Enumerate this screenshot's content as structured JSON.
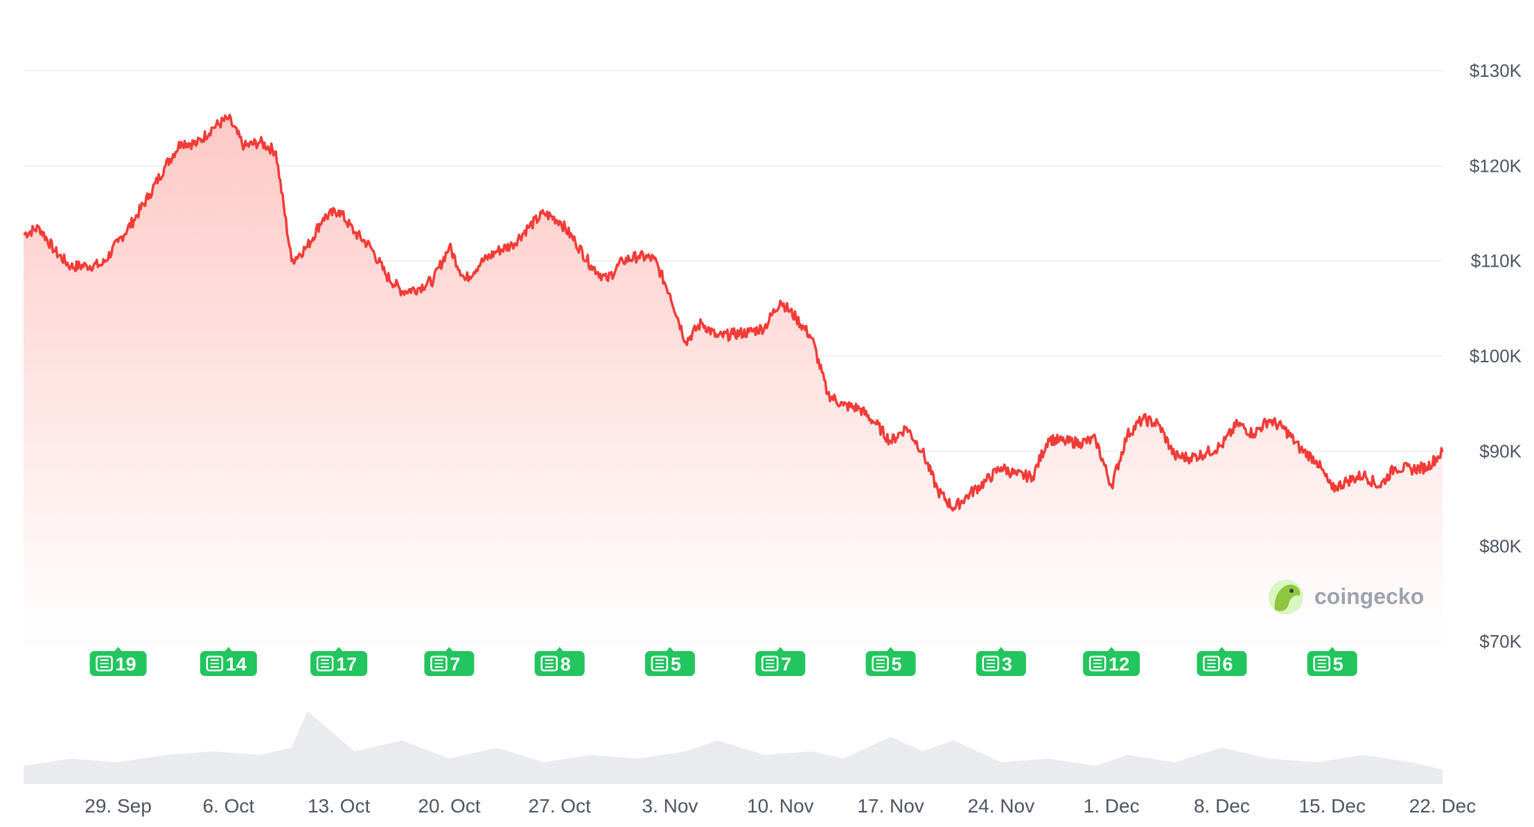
{
  "chart_data": {
    "type": "area",
    "series": [
      {
        "x": [
          "2025-09-23",
          "2025-09-24",
          "2025-09-25",
          "2025-09-26",
          "2025-09-27",
          "2025-09-28",
          "2025-09-29",
          "2025-09-30",
          "2025-10-01",
          "2025-10-02",
          "2025-10-03",
          "2025-10-04",
          "2025-10-05",
          "2025-10-06",
          "2025-10-07",
          "2025-10-08",
          "2025-10-09",
          "2025-10-10",
          "2025-10-11",
          "2025-10-12",
          "2025-10-13",
          "2025-10-14",
          "2025-10-15",
          "2025-10-16",
          "2025-10-17",
          "2025-10-18",
          "2025-10-19",
          "2025-10-20",
          "2025-10-21",
          "2025-10-22",
          "2025-10-23",
          "2025-10-24",
          "2025-10-25",
          "2025-10-26",
          "2025-10-27",
          "2025-10-28",
          "2025-10-29",
          "2025-10-30",
          "2025-10-31",
          "2025-11-01",
          "2025-11-02",
          "2025-11-03",
          "2025-11-04",
          "2025-11-05",
          "2025-11-06",
          "2025-11-07",
          "2025-11-08",
          "2025-11-09",
          "2025-11-10",
          "2025-11-11",
          "2025-11-12",
          "2025-11-13",
          "2025-11-14",
          "2025-11-15",
          "2025-11-16",
          "2025-11-17",
          "2025-11-18",
          "2025-11-19",
          "2025-11-20",
          "2025-11-21",
          "2025-11-22",
          "2025-11-23",
          "2025-11-24",
          "2025-11-25",
          "2025-11-26",
          "2025-11-27",
          "2025-11-28",
          "2025-11-29",
          "2025-11-30",
          "2025-12-01",
          "2025-12-02",
          "2025-12-03",
          "2025-12-04",
          "2025-12-05",
          "2025-12-06",
          "2025-12-07",
          "2025-12-08",
          "2025-12-09",
          "2025-12-10",
          "2025-12-11",
          "2025-12-12",
          "2025-12-13",
          "2025-12-14",
          "2025-12-15",
          "2025-12-16",
          "2025-12-17",
          "2025-12-18",
          "2025-12-19",
          "2025-12-20",
          "2025-12-21",
          "2025-12-22"
        ],
        "y": [
          112800,
          113500,
          111000,
          109400,
          109500,
          109600,
          112000,
          114300,
          117000,
          120000,
          122500,
          122300,
          124000,
          125000,
          122000,
          122500,
          121500,
          110000,
          111500,
          114500,
          115300,
          113000,
          111500,
          108500,
          106800,
          107100,
          108000,
          111500,
          108000,
          109800,
          111000,
          111700,
          113500,
          115000,
          114200,
          112000,
          109500,
          108000,
          110000,
          110500,
          110200,
          106500,
          101500,
          103500,
          102000,
          102300,
          102500,
          103000,
          105800,
          104000,
          101900,
          96000,
          94800,
          94500,
          93000,
          91000,
          92500,
          90000,
          85800,
          84000,
          85500,
          86800,
          88300,
          87500,
          87300,
          91300,
          91000,
          90900,
          91200,
          86300,
          91700,
          93400,
          92800,
          89500,
          89300,
          89800,
          90600,
          92900,
          91800,
          93300,
          92300,
          90200,
          89000,
          86000,
          86900,
          87500,
          86300,
          88300,
          88100,
          88300,
          89900
        ]
      }
    ],
    "xticks": [
      "29. Sep",
      "6. Oct",
      "13. Oct",
      "20. Oct",
      "27. Oct",
      "3. Nov",
      "10. Nov",
      "17. Nov",
      "24. Nov",
      "1. Dec",
      "8. Dec",
      "15. Dec",
      "22. Dec"
    ],
    "xtick_dates": [
      "2025-09-29",
      "2025-10-06",
      "2025-10-13",
      "2025-10-20",
      "2025-10-27",
      "2025-11-03",
      "2025-11-10",
      "2025-11-17",
      "2025-11-24",
      "2025-12-01",
      "2025-12-08",
      "2025-12-15",
      "2025-12-22"
    ],
    "yticks": [
      "$130K",
      "$120K",
      "$110K",
      "$100K",
      "$90K",
      "$80K",
      "$70K"
    ],
    "ytick_values": [
      130000,
      120000,
      110000,
      100000,
      90000,
      80000,
      70000
    ],
    "ylim": [
      70000,
      130000
    ],
    "grid": true,
    "colors": {
      "line": "#f23b37",
      "fill_top": "#fdd5d3",
      "volume": "#e5e7eb",
      "news_badge": "#22c55e"
    },
    "news": [
      {
        "date": "2025-09-29",
        "count": "19"
      },
      {
        "date": "2025-10-06",
        "count": "14"
      },
      {
        "date": "2025-10-13",
        "count": "17"
      },
      {
        "date": "2025-10-20",
        "count": "7"
      },
      {
        "date": "2025-10-27",
        "count": "8"
      },
      {
        "date": "2025-11-03",
        "count": "5"
      },
      {
        "date": "2025-11-10",
        "count": "7"
      },
      {
        "date": "2025-11-17",
        "count": "5"
      },
      {
        "date": "2025-11-24",
        "count": "3"
      },
      {
        "date": "2025-12-01",
        "count": "12"
      },
      {
        "date": "2025-12-08",
        "count": "6"
      },
      {
        "date": "2025-12-15",
        "count": "5"
      }
    ],
    "volume": {
      "x": [
        "2025-09-23",
        "2025-09-26",
        "2025-09-29",
        "2025-10-02",
        "2025-10-05",
        "2025-10-08",
        "2025-10-10",
        "2025-10-11",
        "2025-10-14",
        "2025-10-17",
        "2025-10-20",
        "2025-10-23",
        "2025-10-26",
        "2025-10-29",
        "2025-11-01",
        "2025-11-04",
        "2025-11-06",
        "2025-11-09",
        "2025-11-12",
        "2025-11-14",
        "2025-11-17",
        "2025-11-19",
        "2025-11-21",
        "2025-11-24",
        "2025-11-27",
        "2025-11-30",
        "2025-12-02",
        "2025-12-05",
        "2025-12-08",
        "2025-12-11",
        "2025-12-14",
        "2025-12-17",
        "2025-12-20",
        "2025-12-22"
      ],
      "y": [
        0.25,
        0.35,
        0.3,
        0.4,
        0.45,
        0.4,
        0.5,
        1.0,
        0.45,
        0.6,
        0.35,
        0.5,
        0.3,
        0.4,
        0.35,
        0.45,
        0.6,
        0.4,
        0.45,
        0.35,
        0.65,
        0.45,
        0.6,
        0.3,
        0.35,
        0.25,
        0.4,
        0.3,
        0.5,
        0.35,
        0.3,
        0.4,
        0.3,
        0.2
      ]
    },
    "watermark": "coingecko"
  }
}
